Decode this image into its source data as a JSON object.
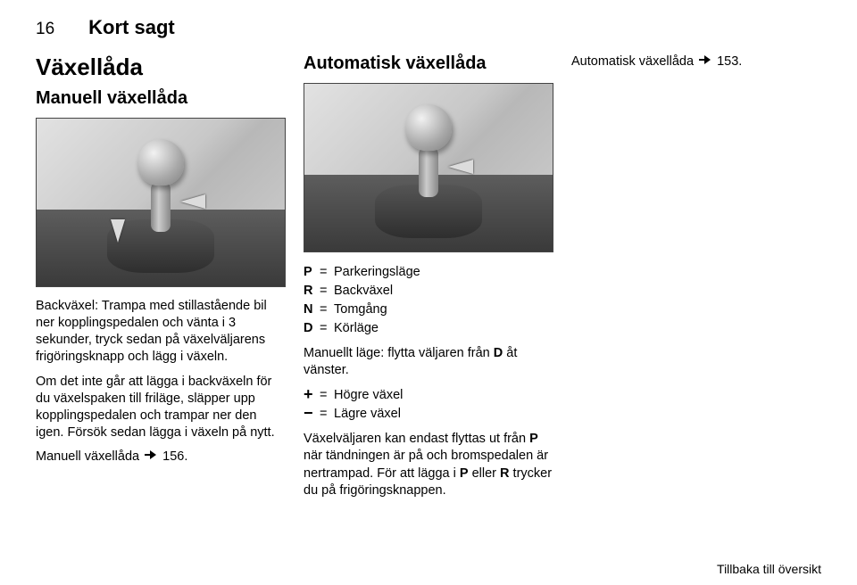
{
  "header": {
    "pageNumber": "16",
    "chapter": "Kort sagt"
  },
  "col1": {
    "title": "Växellåda",
    "subtitle": "Manuell växellåda",
    "para1": "Backväxel: Trampa med stillastående bil ner kopplingspedalen och vänta i 3 sekunder, tryck sedan på växelväljarens frigöringsknapp och lägg i växeln.",
    "para2": "Om det inte går att lägga i backväxeln för du växelspaken till friläge, släpper upp kopplingspedalen och trampar ner den igen. Försök sedan lägga i växeln på nytt.",
    "refLabel": "Manuell växellåda",
    "refNum": "156."
  },
  "col2": {
    "title": "Automatisk växellåda",
    "legend": [
      {
        "k": "P",
        "v": "Parkeringsläge"
      },
      {
        "k": "R",
        "v": "Backväxel"
      },
      {
        "k": "N",
        "v": "Tomgång"
      },
      {
        "k": "D",
        "v": "Körläge"
      }
    ],
    "manual_mode": "Manuellt läge: flytta väljaren från D åt vänster.",
    "plusminus": [
      {
        "k": "+",
        "v": "Högre växel"
      },
      {
        "k": "−",
        "v": "Lägre växel"
      }
    ],
    "para": "Växelväljaren kan endast flyttas ut från P när tändningen är på och bromspedalen är nertrampad. För att lägga i P eller R trycker du på frigöringsknappen."
  },
  "col3": {
    "refLabel": "Automatisk växellåda",
    "refNum": "153."
  },
  "footer": "Tillbaka till översikt"
}
